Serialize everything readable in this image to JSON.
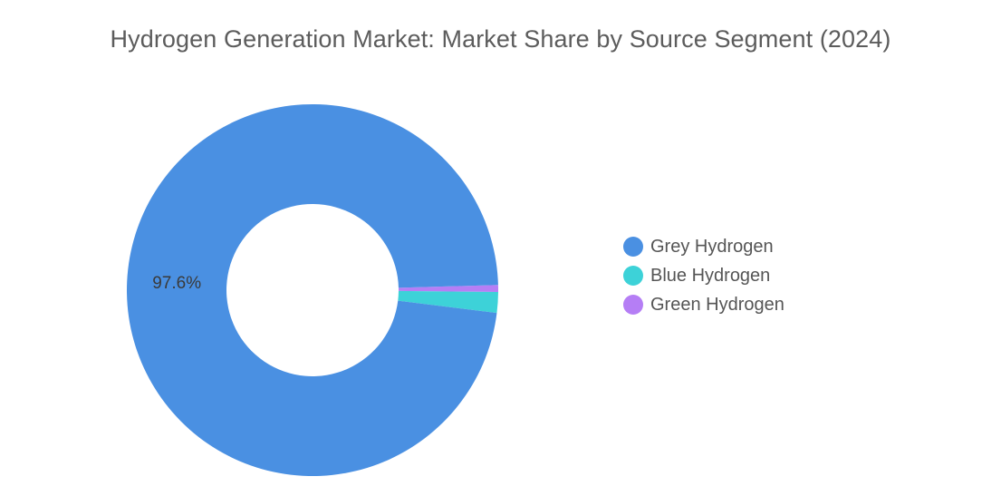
{
  "chart_data": {
    "type": "pie",
    "title": "Hydrogen Generation Market: Market Share by Source Segment (2024)",
    "donut": true,
    "categories": [
      "Grey Hydrogen",
      "Blue Hydrogen",
      "Green Hydrogen"
    ],
    "values": [
      97.6,
      1.8,
      0.6
    ],
    "unit": "%",
    "colors": [
      "#4a90e2",
      "#3dd2d8",
      "#b57ef5"
    ],
    "data_labels": [
      "97.6%",
      "",
      ""
    ],
    "legend_position": "right"
  }
}
